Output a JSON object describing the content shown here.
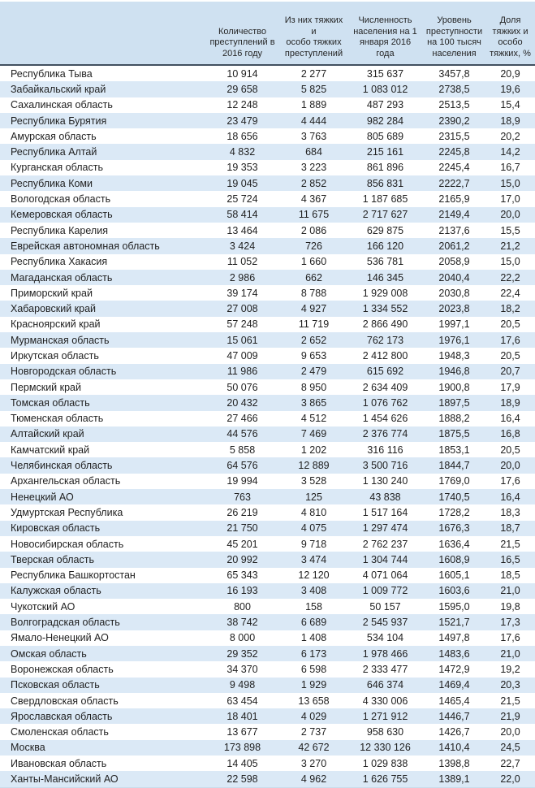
{
  "colors": {
    "header_background": "#cfe1f1",
    "stripe_background": "#dbe9f6",
    "header_border": "#42505f",
    "text": "#1f1f1f"
  },
  "chart_data": {
    "type": "table",
    "legend_position": "none",
    "columns": [
      {
        "label": "",
        "display": ""
      },
      {
        "label": "Количество преступлений в 2016 году",
        "display": "Количество\nпреступлений в\n2016 году"
      },
      {
        "label": "Из них тяжких и особо тяжких преступлений",
        "display": "Из них тяжких и\nособо тяжких\nпреступлений"
      },
      {
        "label": "Численность населения на 1 января 2016 года",
        "display": "Численность\nнаселения на 1\nянваря 2016\nгода"
      },
      {
        "label": "Уровень преступности на 100 тысяч населения",
        "display": "Уровень\nпреступности\nна 100 тысяч\nнаселения"
      },
      {
        "label": "Доля тяжких и особо тяжких, %",
        "display": "Доля\nтяжких и\nособо\nтяжких, %"
      }
    ],
    "rows": [
      [
        "Республика Тыва",
        "10 914",
        "2 277",
        "315 637",
        "3457,8",
        "20,9"
      ],
      [
        "Забайкальский край",
        "29 658",
        "5 825",
        "1 083 012",
        "2738,5",
        "19,6"
      ],
      [
        "Сахалинская область",
        "12 248",
        "1 889",
        "487 293",
        "2513,5",
        "15,4"
      ],
      [
        "Республика Бурятия",
        "23 479",
        "4 444",
        "982 284",
        "2390,2",
        "18,9"
      ],
      [
        "Амурская область",
        "18 656",
        "3 763",
        "805 689",
        "2315,5",
        "20,2"
      ],
      [
        "Республика Алтай",
        "4 832",
        "684",
        "215 161",
        "2245,8",
        "14,2"
      ],
      [
        "Курганская область",
        "19 353",
        "3 223",
        "861 896",
        "2245,4",
        "16,7"
      ],
      [
        "Республика Коми",
        "19 045",
        "2 852",
        "856 831",
        "2222,7",
        "15,0"
      ],
      [
        "Вологодская область",
        "25 724",
        "4 367",
        "1 187 685",
        "2165,9",
        "17,0"
      ],
      [
        "Кемеровская область",
        "58 414",
        "11 675",
        "2 717 627",
        "2149,4",
        "20,0"
      ],
      [
        "Республика Карелия",
        "13 464",
        "2 086",
        "629 875",
        "2137,6",
        "15,5"
      ],
      [
        "Еврейская автономная область",
        "3 424",
        "726",
        "166 120",
        "2061,2",
        "21,2"
      ],
      [
        "Республика Хакасия",
        "11 052",
        "1 660",
        "536 781",
        "2058,9",
        "15,0"
      ],
      [
        "Магаданская область",
        "2 986",
        "662",
        "146 345",
        "2040,4",
        "22,2"
      ],
      [
        "Приморский край",
        "39 174",
        "8 788",
        "1 929 008",
        "2030,8",
        "22,4"
      ],
      [
        "Хабаровский край",
        "27 008",
        "4 927",
        "1 334 552",
        "2023,8",
        "18,2"
      ],
      [
        "Красноярский край",
        "57 248",
        "11 719",
        "2 866 490",
        "1997,1",
        "20,5"
      ],
      [
        "Мурманская область",
        "15 061",
        "2 652",
        "762 173",
        "1976,1",
        "17,6"
      ],
      [
        "Иркутская область",
        "47 009",
        "9 653",
        "2 412 800",
        "1948,3",
        "20,5"
      ],
      [
        "Новгородская область",
        "11 986",
        "2 479",
        "615 692",
        "1946,8",
        "20,7"
      ],
      [
        "Пермский край",
        "50 076",
        "8 950",
        "2 634 409",
        "1900,8",
        "17,9"
      ],
      [
        "Томская область",
        "20 432",
        "3 865",
        "1 076 762",
        "1897,5",
        "18,9"
      ],
      [
        "Тюменская область",
        "27 466",
        "4 512",
        "1 454 626",
        "1888,2",
        "16,4"
      ],
      [
        "Алтайский край",
        "44 576",
        "7 469",
        "2 376 774",
        "1875,5",
        "16,8"
      ],
      [
        "Камчатский край",
        "5 858",
        "1 202",
        "316 116",
        "1853,1",
        "20,5"
      ],
      [
        "Челябинская область",
        "64 576",
        "12 889",
        "3 500 716",
        "1844,7",
        "20,0"
      ],
      [
        "Архангельская область",
        "19 994",
        "3 528",
        "1 130 240",
        "1769,0",
        "17,6"
      ],
      [
        "Ненецкий АО",
        "763",
        "125",
        "43 838",
        "1740,5",
        "16,4"
      ],
      [
        "Удмуртская Республика",
        "26 219",
        "4 810",
        "1 517 164",
        "1728,2",
        "18,3"
      ],
      [
        "Кировская область",
        "21 750",
        "4 075",
        "1 297 474",
        "1676,3",
        "18,7"
      ],
      [
        "Новосибирская область",
        "45 201",
        "9 718",
        "2 762 237",
        "1636,4",
        "21,5"
      ],
      [
        "Тверская область",
        "20 992",
        "3 474",
        "1 304 744",
        "1608,9",
        "16,5"
      ],
      [
        "Республика Башкортостан",
        "65 343",
        "12 120",
        "4 071 064",
        "1605,1",
        "18,5"
      ],
      [
        "Калужская область",
        "16 193",
        "3 408",
        "1 009 772",
        "1603,6",
        "21,0"
      ],
      [
        "Чукотский АО",
        "800",
        "158",
        "50 157",
        "1595,0",
        "19,8"
      ],
      [
        "Волгоградская область",
        "38 742",
        "6 689",
        "2 545 937",
        "1521,7",
        "17,3"
      ],
      [
        "Ямало-Ненецкий АО",
        "8 000",
        "1 408",
        "534 104",
        "1497,8",
        "17,6"
      ],
      [
        "Омская область",
        "29 352",
        "6 173",
        "1 978 466",
        "1483,6",
        "21,0"
      ],
      [
        "Воронежская область",
        "34 370",
        "6 598",
        "2 333 477",
        "1472,9",
        "19,2"
      ],
      [
        "Псковская область",
        "9 498",
        "1 929",
        "646 374",
        "1469,4",
        "20,3"
      ],
      [
        "Свердловская область",
        "63 454",
        "13 658",
        "4 330 006",
        "1465,4",
        "21,5"
      ],
      [
        "Ярославская область",
        "18 401",
        "4 029",
        "1 271 912",
        "1446,7",
        "21,9"
      ],
      [
        "Смоленская область",
        "13 677",
        "2 737",
        "958 630",
        "1426,7",
        "20,0"
      ],
      [
        "Москва",
        "173 898",
        "42 672",
        "12 330 126",
        "1410,4",
        "24,5"
      ],
      [
        "Ивановская область",
        "14 405",
        "3 270",
        "1 029 838",
        "1398,8",
        "22,7"
      ],
      [
        "Ханты-Мансийский АО",
        "22 598",
        "4 962",
        "1 626 755",
        "1389,1",
        "22,0"
      ]
    ]
  }
}
